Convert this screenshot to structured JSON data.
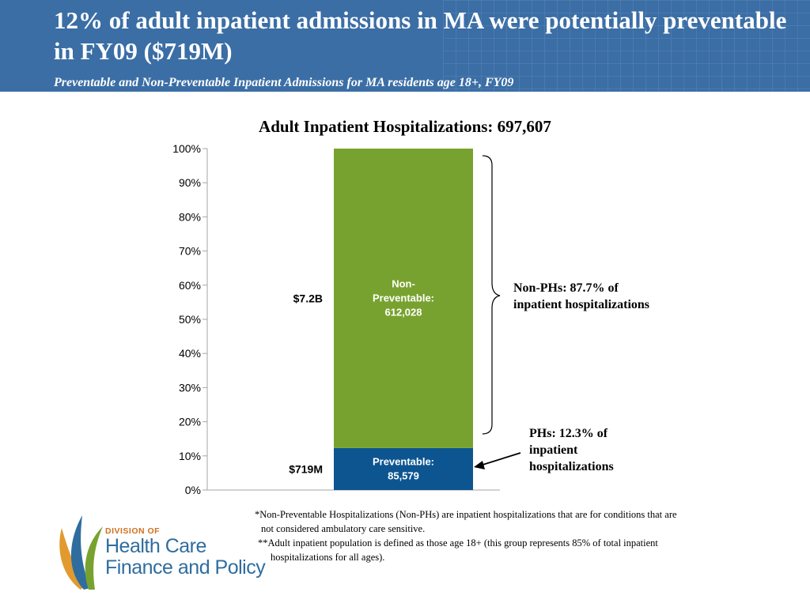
{
  "header": {
    "title": "12% of adult inpatient admissions in MA were potentially preventable in FY09 ($719M)",
    "subtitle": "Preventable and Non-Preventable Inpatient Admissions for MA residents age 18+, FY09"
  },
  "chart_data": {
    "type": "bar",
    "stacked": true,
    "title": "Adult Inpatient Hospitalizations: 697,607",
    "ylim": [
      0,
      100
    ],
    "ytick_labels": [
      "0%",
      "10%",
      "20%",
      "30%",
      "40%",
      "50%",
      "60%",
      "70%",
      "80%",
      "90%",
      "100%"
    ],
    "series": [
      {
        "name": "Preventable",
        "value_pct": 12.3,
        "label_lines": [
          "Preventable:",
          "85,579"
        ],
        "cost": "$719M",
        "color": "#0d5591"
      },
      {
        "name": "Non-Preventable",
        "value_pct": 87.7,
        "label_lines": [
          "Non-",
          "Preventable:",
          "612,028"
        ],
        "cost": "$7.2B",
        "color": "#78a22f"
      }
    ],
    "annotations": {
      "non_phs": [
        "Non-PHs: 87.7% of",
        "inpatient hospitalizations"
      ],
      "phs": [
        "PHs: 12.3% of",
        "inpatient",
        "hospitalizations"
      ]
    }
  },
  "footnotes": {
    "note1_line1": "*Non-Preventable Hospitalizations (Non-PHs) are inpatient hospitalizations that are for conditions that are",
    "note1_line2": "not considered ambulatory care sensitive.",
    "note2_line1": "**Adult inpatient population is defined as those age 18+ (this group represents 85% of total inpatient",
    "note2_line2": "hospitalizations for all ages)."
  },
  "logo": {
    "division": "DIVISION OF",
    "line1": "Health Care",
    "line2": "Finance and Policy"
  },
  "colors": {
    "header_bg": "#3b6ea5",
    "preventable": "#0d5591",
    "non_preventable": "#78a22f"
  }
}
